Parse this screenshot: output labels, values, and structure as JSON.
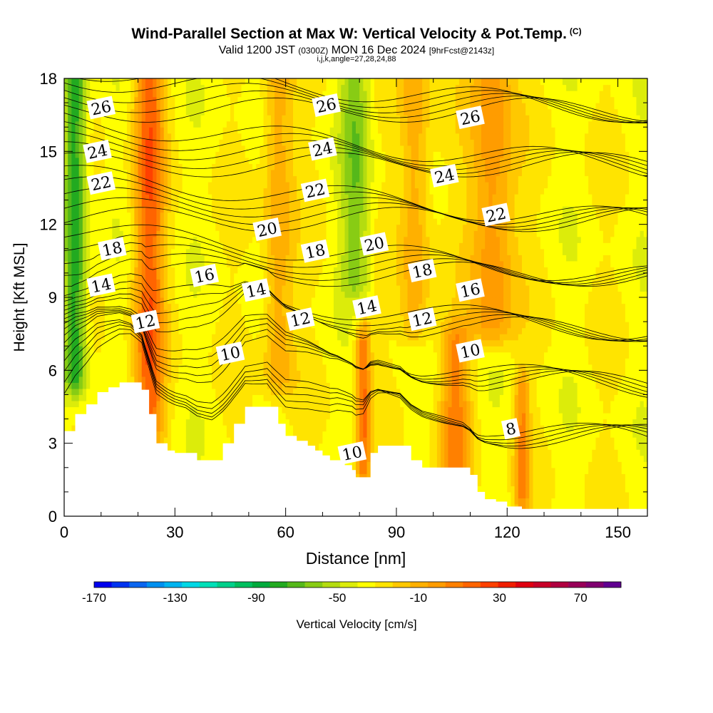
{
  "title": {
    "main": "Wind-Parallel Section at Max W: Vertical Velocity & Pot.Temp.",
    "copyright": "(C)",
    "valid_prefix": "Valid 1200 JST",
    "valid_zulu": "(0300Z)",
    "valid_date": "MON 16 Dec 2024",
    "forecast": "[9hrFcst@2143z]",
    "indices": "i,j,k,angle=27,28,24,88"
  },
  "chart_data": {
    "type": "heatmap",
    "xlabel": "Distance [nm]",
    "ylabel": "Height [Kft MSL]",
    "xlim": [
      0,
      158
    ],
    "ylim": [
      0,
      18
    ],
    "x_ticks": [
      "0",
      "30",
      "60",
      "90",
      "120",
      "150"
    ],
    "y_ticks": [
      "0",
      "3",
      "6",
      "9",
      "12",
      "15",
      "18"
    ],
    "x_tick_values": [
      0,
      30,
      60,
      90,
      120,
      150
    ],
    "y_tick_values": [
      0,
      3,
      6,
      9,
      12,
      15,
      18
    ],
    "grid": false,
    "colorbar": {
      "label": "Vertical Velocity [cm/s]",
      "tick_labels": [
        "-170",
        "-130",
        "-90",
        "-50",
        "-10",
        "30",
        "70"
      ],
      "tick_values": [
        -170,
        -130,
        -90,
        -50,
        -10,
        30,
        70
      ],
      "min": -170,
      "max": 90,
      "step": 10,
      "colors": [
        "#0000ee",
        "#0033f0",
        "#0a66f0",
        "#0090f0",
        "#00b4f0",
        "#00d8e6",
        "#00e0b8",
        "#00d08a",
        "#00bf5e",
        "#00aa3c",
        "#22aa20",
        "#55b81a",
        "#88cc14",
        "#b4dc10",
        "#dcec0a",
        "#ffff00",
        "#ffe400",
        "#ffc800",
        "#ffb000",
        "#ff9c00",
        "#ff8000",
        "#ff6400",
        "#ff4000",
        "#f01e00",
        "#e00010",
        "#c80028",
        "#b00040",
        "#980058",
        "#800070",
        "#600090"
      ]
    },
    "terrain_profile": {
      "x": [
        0,
        3,
        6,
        9,
        12,
        15,
        18,
        21,
        23,
        25,
        28,
        30,
        33,
        36,
        40,
        43,
        46,
        49,
        52,
        55,
        58,
        60,
        63,
        66,
        68,
        70,
        72,
        74,
        76,
        78,
        79,
        81,
        83,
        85,
        88,
        91,
        94,
        97,
        100,
        103,
        106,
        108,
        110,
        112,
        114,
        117,
        120,
        124,
        130,
        140,
        150,
        158
      ],
      "height_kft": [
        3.5,
        4.2,
        4.6,
        5.1,
        5.3,
        5.5,
        5.5,
        5.2,
        4.2,
        3.0,
        2.7,
        2.6,
        2.6,
        2.3,
        2.3,
        3.0,
        3.8,
        4.5,
        4.5,
        4.5,
        3.8,
        3.3,
        3.1,
        2.9,
        2.7,
        2.5,
        2.3,
        2.3,
        2.1,
        1.9,
        1.6,
        1.6,
        2.6,
        2.9,
        2.9,
        2.9,
        2.3,
        2.0,
        2.0,
        2.0,
        2.0,
        2.0,
        1.7,
        1.0,
        0.7,
        0.6,
        0.4,
        0.3,
        0.3,
        0.3,
        0.3,
        0.3
      ]
    },
    "vertical_velocity_features": [
      {
        "x_center": 3,
        "x_width": 3,
        "z_bottom": 6,
        "z_top": 18,
        "w_cm_s": -70
      },
      {
        "x_center": 23,
        "x_width": 4,
        "z_bottom": 4,
        "z_top": 18,
        "w_cm_s": 45
      },
      {
        "x_center": 58,
        "x_width": 4,
        "z_bottom": 6,
        "z_top": 18,
        "w_cm_s": 20
      },
      {
        "x_center": 79,
        "x_width": 4,
        "z_bottom": 10,
        "z_top": 18,
        "w_cm_s": -45
      },
      {
        "x_center": 81,
        "x_width": 2,
        "z_bottom": 2,
        "z_top": 7,
        "w_cm_s": 40
      },
      {
        "x_center": 95,
        "x_width": 4,
        "z_bottom": 8,
        "z_top": 18,
        "w_cm_s": 20
      },
      {
        "x_center": 106,
        "x_width": 4,
        "z_bottom": 2,
        "z_top": 7,
        "w_cm_s": 30
      },
      {
        "x_center": 116,
        "x_width": 6,
        "z_bottom": 8,
        "z_top": 18,
        "w_cm_s": 30
      },
      {
        "x_center": 124,
        "x_width": 2,
        "z_bottom": 1,
        "z_top": 5,
        "w_cm_s": 30
      }
    ],
    "potential_temperature_contours": {
      "levels_labeled": [
        8,
        10,
        12,
        14,
        16,
        18,
        20,
        22,
        24,
        26
      ],
      "labels": [
        {
          "text": "26",
          "x": 10,
          "z": 16.8
        },
        {
          "text": "24",
          "x": 9,
          "z": 15.0
        },
        {
          "text": "22",
          "x": 10,
          "z": 13.7
        },
        {
          "text": "18",
          "x": 13,
          "z": 11.0
        },
        {
          "text": "14",
          "x": 10,
          "z": 9.5
        },
        {
          "text": "12",
          "x": 22,
          "z": 8.0
        },
        {
          "text": "16",
          "x": 38,
          "z": 9.9
        },
        {
          "text": "10",
          "x": 45,
          "z": 6.7
        },
        {
          "text": "20",
          "x": 55,
          "z": 11.8
        },
        {
          "text": "14",
          "x": 52,
          "z": 9.3
        },
        {
          "text": "18",
          "x": 68,
          "z": 10.9
        },
        {
          "text": "22",
          "x": 68,
          "z": 13.4
        },
        {
          "text": "24",
          "x": 70,
          "z": 15.1
        },
        {
          "text": "26",
          "x": 71,
          "z": 16.9
        },
        {
          "text": "12",
          "x": 64,
          "z": 8.1
        },
        {
          "text": "20",
          "x": 84,
          "z": 11.2
        },
        {
          "text": "14",
          "x": 82,
          "z": 8.6
        },
        {
          "text": "10",
          "x": 78,
          "z": 2.6
        },
        {
          "text": "18",
          "x": 97,
          "z": 10.1
        },
        {
          "text": "12",
          "x": 97,
          "z": 8.1
        },
        {
          "text": "24",
          "x": 103,
          "z": 14.0
        },
        {
          "text": "26",
          "x": 110,
          "z": 16.4
        },
        {
          "text": "22",
          "x": 117,
          "z": 12.4
        },
        {
          "text": "16",
          "x": 110,
          "z": 9.3
        },
        {
          "text": "10",
          "x": 110,
          "z": 6.8
        },
        {
          "text": "8",
          "x": 121,
          "z": 3.6
        }
      ]
    }
  }
}
